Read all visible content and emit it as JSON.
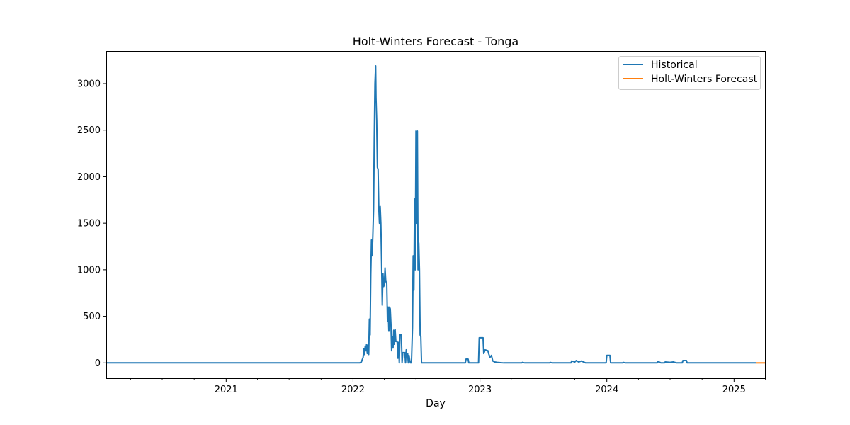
{
  "chart_data": {
    "type": "line",
    "title": "Holt-Winters Forecast - Tonga",
    "xlabel": "Day",
    "ylabel": "",
    "x_axis": "date",
    "xlim": [
      "2020-01-22",
      "2025-03-31"
    ],
    "ylim": [
      -165,
      3350
    ],
    "x_ticks": [
      {
        "date": "2021-01-01",
        "label": "2021"
      },
      {
        "date": "2022-01-01",
        "label": "2022"
      },
      {
        "date": "2023-01-01",
        "label": "2023"
      },
      {
        "date": "2024-01-01",
        "label": "2024"
      },
      {
        "date": "2025-01-01",
        "label": "2025"
      }
    ],
    "minor_x_ticks": [
      "2020-04-01",
      "2020-07-01",
      "2020-10-01",
      "2021-04-01",
      "2021-07-01",
      "2021-10-01",
      "2022-04-01",
      "2022-07-01",
      "2022-10-01",
      "2023-04-01",
      "2023-07-01",
      "2023-10-01",
      "2024-04-01",
      "2024-07-01",
      "2024-10-01",
      "2025-04-01"
    ],
    "y_ticks": [
      0,
      500,
      1000,
      1500,
      2000,
      2500,
      3000
    ],
    "y_tick_labels": [
      "0",
      "500",
      "1000",
      "1500",
      "2000",
      "2500",
      "3000"
    ],
    "grid": false,
    "legend_position": "top-right",
    "series": [
      {
        "name": "Historical",
        "color": "#1f77b4",
        "points": [
          [
            "2020-01-22",
            0
          ],
          [
            "2021-11-01",
            0
          ],
          [
            "2022-01-20",
            0
          ],
          [
            "2022-01-25",
            10
          ],
          [
            "2022-01-30",
            60
          ],
          [
            "2022-02-01",
            150
          ],
          [
            "2022-02-03",
            90
          ],
          [
            "2022-02-05",
            180
          ],
          [
            "2022-02-07",
            130
          ],
          [
            "2022-02-09",
            200
          ],
          [
            "2022-02-11",
            100
          ],
          [
            "2022-02-13",
            190
          ],
          [
            "2022-02-15",
            90
          ],
          [
            "2022-02-17",
            470
          ],
          [
            "2022-02-19",
            300
          ],
          [
            "2022-02-21",
            950
          ],
          [
            "2022-02-23",
            1320
          ],
          [
            "2022-02-25",
            1150
          ],
          [
            "2022-02-27",
            1380
          ],
          [
            "2022-03-01",
            1650
          ],
          [
            "2022-03-03",
            2400
          ],
          [
            "2022-03-05",
            3000
          ],
          [
            "2022-03-07",
            3190
          ],
          [
            "2022-03-08",
            2850
          ],
          [
            "2022-03-10",
            2600
          ],
          [
            "2022-03-12",
            2100
          ],
          [
            "2022-03-14",
            2080
          ],
          [
            "2022-03-16",
            1670
          ],
          [
            "2022-03-18",
            1500
          ],
          [
            "2022-03-20",
            1680
          ],
          [
            "2022-03-22",
            1500
          ],
          [
            "2022-03-24",
            1100
          ],
          [
            "2022-03-26",
            620
          ],
          [
            "2022-03-28",
            960
          ],
          [
            "2022-03-30",
            820
          ],
          [
            "2022-04-01",
            840
          ],
          [
            "2022-04-03",
            1020
          ],
          [
            "2022-04-05",
            880
          ],
          [
            "2022-04-08",
            850
          ],
          [
            "2022-04-10",
            450
          ],
          [
            "2022-04-12",
            600
          ],
          [
            "2022-04-14",
            340
          ],
          [
            "2022-04-16",
            600
          ],
          [
            "2022-04-18",
            580
          ],
          [
            "2022-04-20",
            420
          ],
          [
            "2022-04-22",
            130
          ],
          [
            "2022-04-24",
            280
          ],
          [
            "2022-04-26",
            160
          ],
          [
            "2022-04-28",
            350
          ],
          [
            "2022-04-30",
            200
          ],
          [
            "2022-05-02",
            360
          ],
          [
            "2022-05-04",
            230
          ],
          [
            "2022-05-08",
            230
          ],
          [
            "2022-05-10",
            50
          ],
          [
            "2022-05-12",
            220
          ],
          [
            "2022-05-14",
            0
          ],
          [
            "2022-05-16",
            300
          ],
          [
            "2022-05-20",
            300
          ],
          [
            "2022-05-22",
            0
          ],
          [
            "2022-05-24",
            110
          ],
          [
            "2022-05-30",
            110
          ],
          [
            "2022-06-01",
            0
          ],
          [
            "2022-06-03",
            140
          ],
          [
            "2022-06-05",
            80
          ],
          [
            "2022-06-07",
            100
          ],
          [
            "2022-06-09",
            0
          ],
          [
            "2022-06-11",
            80
          ],
          [
            "2022-06-13",
            30
          ],
          [
            "2022-06-15",
            0
          ],
          [
            "2022-06-18",
            0
          ],
          [
            "2022-06-21",
            380
          ],
          [
            "2022-06-23",
            1150
          ],
          [
            "2022-06-25",
            780
          ],
          [
            "2022-06-27",
            1760
          ],
          [
            "2022-06-29",
            1000
          ],
          [
            "2022-07-01",
            2490
          ],
          [
            "2022-07-03",
            1500
          ],
          [
            "2022-07-05",
            2490
          ],
          [
            "2022-07-07",
            1000
          ],
          [
            "2022-07-09",
            1290
          ],
          [
            "2022-07-11",
            1000
          ],
          [
            "2022-07-13",
            300
          ],
          [
            "2022-07-15",
            280
          ],
          [
            "2022-07-17",
            0
          ],
          [
            "2022-11-20",
            0
          ],
          [
            "2022-11-22",
            40
          ],
          [
            "2022-11-28",
            40
          ],
          [
            "2022-11-30",
            0
          ],
          [
            "2022-12-28",
            0
          ],
          [
            "2022-12-30",
            270
          ],
          [
            "2023-01-10",
            270
          ],
          [
            "2023-01-12",
            100
          ],
          [
            "2023-01-16",
            140
          ],
          [
            "2023-01-24",
            130
          ],
          [
            "2023-01-26",
            100
          ],
          [
            "2023-01-30",
            60
          ],
          [
            "2023-02-03",
            80
          ],
          [
            "2023-02-07",
            20
          ],
          [
            "2023-02-12",
            10
          ],
          [
            "2023-02-20",
            5
          ],
          [
            "2023-03-10",
            0
          ],
          [
            "2023-05-01",
            0
          ],
          [
            "2023-05-03",
            5
          ],
          [
            "2023-05-10",
            0
          ],
          [
            "2023-07-20",
            0
          ],
          [
            "2023-07-22",
            5
          ],
          [
            "2023-07-28",
            0
          ],
          [
            "2023-09-20",
            0
          ],
          [
            "2023-09-22",
            20
          ],
          [
            "2023-10-01",
            10
          ],
          [
            "2023-10-05",
            25
          ],
          [
            "2023-10-12",
            10
          ],
          [
            "2023-10-20",
            20
          ],
          [
            "2023-11-01",
            0
          ],
          [
            "2023-12-30",
            0
          ],
          [
            "2024-01-01",
            80
          ],
          [
            "2024-01-10",
            80
          ],
          [
            "2024-01-12",
            0
          ],
          [
            "2024-02-15",
            0
          ],
          [
            "2024-02-17",
            5
          ],
          [
            "2024-02-24",
            0
          ],
          [
            "2024-05-25",
            0
          ],
          [
            "2024-05-27",
            15
          ],
          [
            "2024-06-05",
            0
          ],
          [
            "2024-06-15",
            0
          ],
          [
            "2024-06-17",
            10
          ],
          [
            "2024-07-01",
            5
          ],
          [
            "2024-07-10",
            10
          ],
          [
            "2024-07-20",
            0
          ],
          [
            "2024-08-05",
            0
          ],
          [
            "2024-08-07",
            25
          ],
          [
            "2024-08-17",
            25
          ],
          [
            "2024-08-19",
            0
          ],
          [
            "2025-03-05",
            0
          ]
        ]
      },
      {
        "name": "Holt-Winters Forecast",
        "color": "#ff7f0e",
        "points": [
          [
            "2025-03-06",
            0
          ],
          [
            "2025-03-31",
            0
          ]
        ]
      }
    ]
  }
}
